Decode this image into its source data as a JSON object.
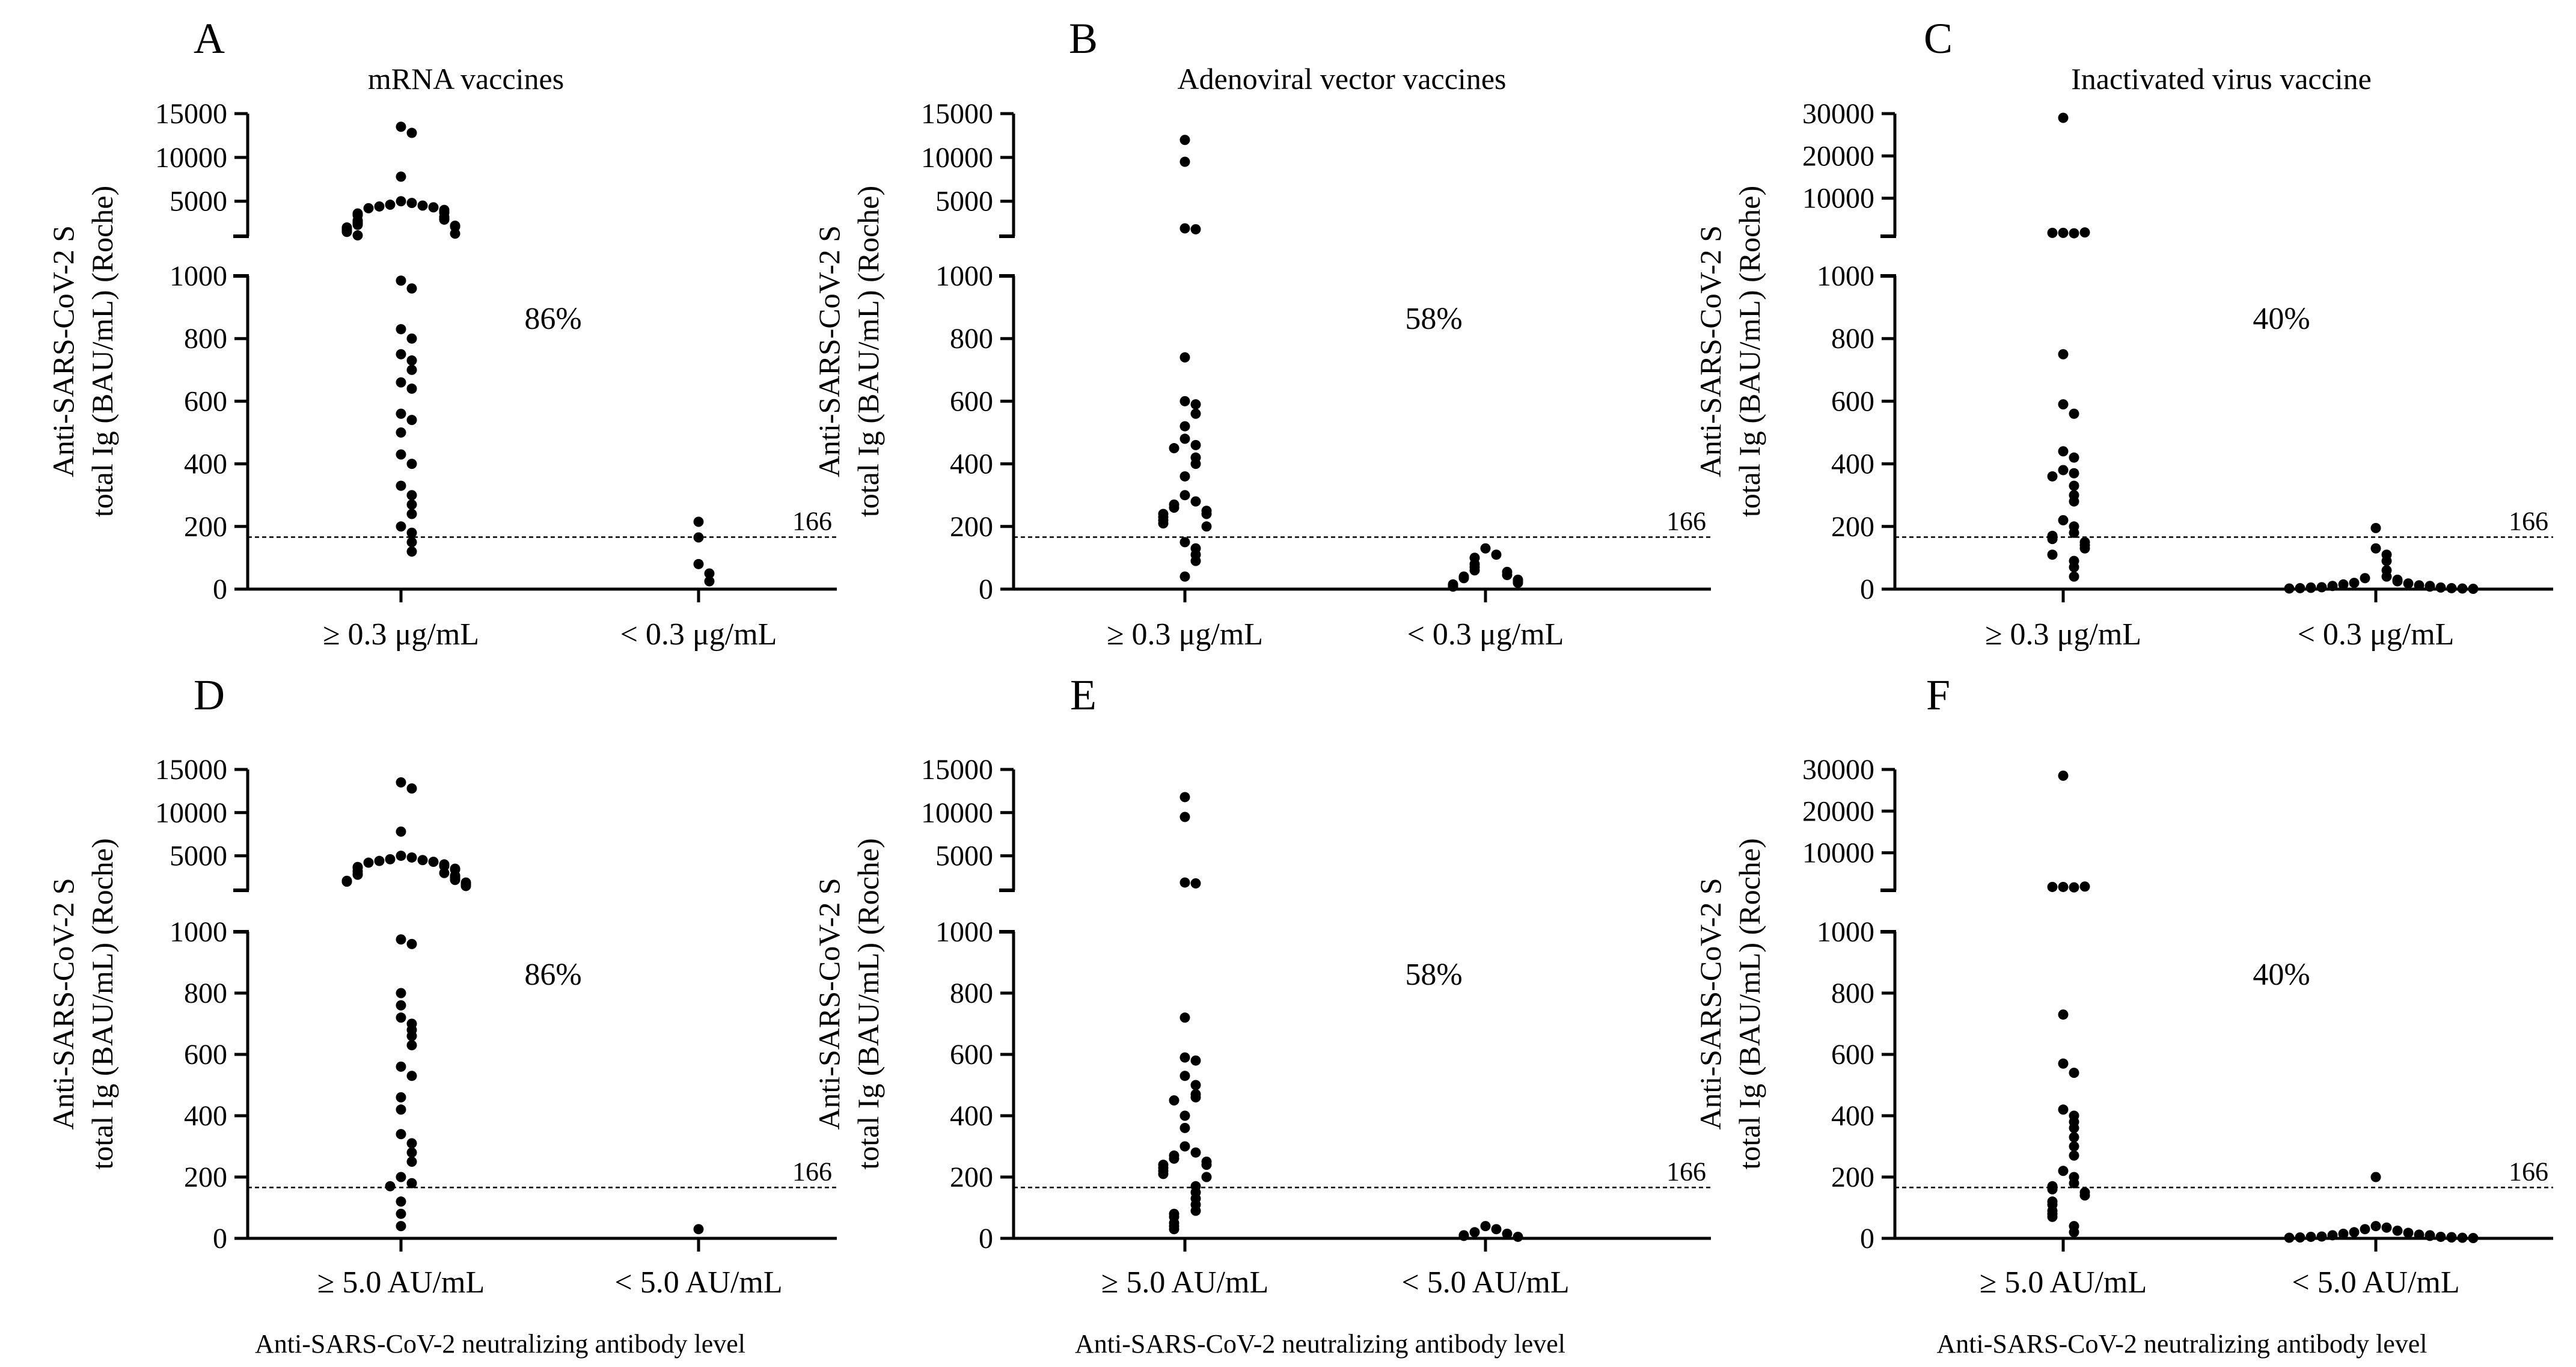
{
  "figure_caption_shared": "Anti-SARS-CoV-2 neutralizing antibody level",
  "chart_data": [
    {
      "type": "scatter",
      "panel_letter": "A",
      "title": "mRNA vaccines",
      "ylabel_line1": "Anti-SARS-CoV-2 S",
      "ylabel_line2": "total Ig (BAU/mL) (Roche)",
      "xlabel": "",
      "percent_label": "86%",
      "cutoff": 166,
      "cutoff_label": "166",
      "lower_ylim": [
        0,
        1000
      ],
      "lower_ticks": [
        "0",
        "200",
        "400",
        "600",
        "800",
        "1000"
      ],
      "upper_ylim": [
        1000,
        15000
      ],
      "upper_ticks": [
        "5000",
        "10000",
        "15000"
      ],
      "categories": [
        "≥ 0.3 μg/mL",
        "< 0.3 μg/mL"
      ],
      "series": [
        {
          "name": "≥ 0.3 μg/mL",
          "values": [
            13500,
            12800,
            7800,
            5000,
            4800,
            4600,
            4500,
            4400,
            4300,
            4200,
            4000,
            3800,
            3700,
            3600,
            3500,
            3400,
            3200,
            3000,
            2900,
            2800,
            2700,
            2600,
            2500,
            2400,
            2300,
            2200,
            2100,
            2000,
            1900,
            1800,
            1700,
            1600,
            1500,
            1300,
            1100,
            985,
            960,
            830,
            800,
            750,
            730,
            700,
            660,
            640,
            560,
            540,
            500,
            430,
            400,
            330,
            300,
            270,
            240,
            200,
            180,
            150,
            120
          ]
        },
        {
          "name": "< 0.3 μg/mL",
          "values": [
            215,
            165,
            80,
            50,
            25
          ]
        }
      ]
    },
    {
      "type": "scatter",
      "panel_letter": "B",
      "title": "Adenoviral vector vaccines",
      "ylabel_line1": "Anti-SARS-CoV-2 S",
      "ylabel_line2": "total Ig (BAU/mL) (Roche)",
      "xlabel": "",
      "percent_label": "58%",
      "cutoff": 166,
      "cutoff_label": "166",
      "lower_ylim": [
        0,
        1000
      ],
      "lower_ticks": [
        "0",
        "200",
        "400",
        "600",
        "800",
        "1000"
      ],
      "upper_ylim": [
        1000,
        15000
      ],
      "upper_ticks": [
        "5000",
        "10000",
        "15000"
      ],
      "categories": [
        "≥ 0.3 μg/mL",
        "< 0.3 μg/mL"
      ],
      "series": [
        {
          "name": "≥ 0.3 μg/mL",
          "values": [
            12000,
            9500,
            1900,
            1800,
            740,
            600,
            590,
            560,
            520,
            480,
            460,
            450,
            420,
            400,
            360,
            300,
            280,
            270,
            260,
            250,
            240,
            240,
            230,
            220,
            210,
            200,
            150,
            130,
            110,
            90,
            40
          ]
        },
        {
          "name": "< 0.3 μg/mL",
          "values": [
            130,
            110,
            100,
            80,
            70,
            60,
            55,
            45,
            40,
            35,
            30,
            25,
            20,
            15,
            10,
            8
          ]
        }
      ]
    },
    {
      "type": "scatter",
      "panel_letter": "C",
      "title": "Inactivated virus vaccine",
      "ylabel_line1": "Anti-SARS-CoV-2 S",
      "ylabel_line2": "total Ig (BAU/mL) (Roche)",
      "xlabel": "",
      "percent_label": "40%",
      "cutoff": 166,
      "cutoff_label": "166",
      "lower_ylim": [
        0,
        1000
      ],
      "lower_ticks": [
        "0",
        "200",
        "400",
        "600",
        "800",
        "1000"
      ],
      "upper_ylim": [
        1000,
        30000
      ],
      "upper_ticks": [
        "10000",
        "20000",
        "30000"
      ],
      "categories": [
        "≥ 0.3 μg/mL",
        "< 0.3 μg/mL"
      ],
      "series": [
        {
          "name": "≥ 0.3 μg/mL",
          "values": [
            29000,
            1800,
            1700,
            1800,
            1900,
            750,
            590,
            560,
            440,
            420,
            380,
            370,
            360,
            330,
            300,
            280,
            220,
            200,
            180,
            170,
            160,
            150,
            140,
            130,
            110,
            90,
            70,
            40
          ]
        },
        {
          "name": "< 0.3 μg/mL",
          "values": [
            195,
            130,
            110,
            90,
            60,
            40,
            35,
            30,
            25,
            20,
            18,
            15,
            12,
            10,
            10,
            8,
            6,
            5,
            5,
            4,
            3,
            3,
            2,
            2,
            1
          ]
        }
      ]
    },
    {
      "type": "scatter",
      "panel_letter": "D",
      "title": "",
      "ylabel_line1": "Anti-SARS-CoV-2 S",
      "ylabel_line2": "total Ig (BAU/mL) (Roche)",
      "xlabel": "Anti-SARS-CoV-2 neutralizing antibody level",
      "percent_label": "86%",
      "cutoff": 166,
      "cutoff_label": "166",
      "lower_ylim": [
        0,
        1000
      ],
      "lower_ticks": [
        "0",
        "200",
        "400",
        "600",
        "800",
        "1000"
      ],
      "upper_ylim": [
        1000,
        15000
      ],
      "upper_ticks": [
        "5000",
        "10000",
        "15000"
      ],
      "categories": [
        "≥ 5.0 AU/mL",
        "< 5.0 AU/mL"
      ],
      "series": [
        {
          "name": "≥ 5.0 AU/mL",
          "values": [
            13500,
            12800,
            7800,
            5000,
            4800,
            4600,
            4500,
            4400,
            4300,
            4200,
            4000,
            3800,
            3700,
            3600,
            3500,
            3400,
            3200,
            3000,
            2900,
            2800,
            2700,
            2600,
            2500,
            2400,
            2300,
            2200,
            2100,
            2000,
            1900,
            1800,
            1700,
            1600,
            1500,
            975,
            960,
            800,
            760,
            720,
            700,
            680,
            660,
            630,
            560,
            530,
            460,
            420,
            340,
            310,
            280,
            250,
            200,
            180,
            170,
            120,
            80,
            40
          ]
        },
        {
          "name": "< 5.0 AU/mL",
          "values": [
            30
          ]
        }
      ]
    },
    {
      "type": "scatter",
      "panel_letter": "E",
      "title": "",
      "ylabel_line1": "Anti-SARS-CoV-2 S",
      "ylabel_line2": "total Ig (BAU/mL) (Roche)",
      "xlabel": "Anti-SARS-CoV-2 neutralizing antibody level",
      "percent_label": "58%",
      "cutoff": 166,
      "cutoff_label": "166",
      "lower_ylim": [
        0,
        1000
      ],
      "lower_ticks": [
        "0",
        "200",
        "400",
        "600",
        "800",
        "1000"
      ],
      "upper_ylim": [
        1000,
        15000
      ],
      "upper_ticks": [
        "5000",
        "10000",
        "15000"
      ],
      "categories": [
        "≥ 5.0 AU/mL",
        "< 5.0 AU/mL"
      ],
      "series": [
        {
          "name": "≥ 5.0 AU/mL",
          "values": [
            11800,
            9500,
            1900,
            1800,
            720,
            590,
            580,
            530,
            500,
            470,
            460,
            450,
            400,
            360,
            300,
            280,
            270,
            260,
            250,
            240,
            240,
            230,
            220,
            210,
            200,
            170,
            150,
            130,
            110,
            90,
            80,
            70,
            50,
            40,
            30
          ]
        },
        {
          "name": "< 5.0 AU/mL",
          "values": [
            40,
            30,
            20,
            15,
            10,
            8,
            5
          ]
        }
      ]
    },
    {
      "type": "scatter",
      "panel_letter": "F",
      "title": "",
      "ylabel_line1": "Anti-SARS-CoV-2 S",
      "ylabel_line2": "total Ig (BAU/mL) (Roche)",
      "xlabel": "Anti-SARS-CoV-2 neutralizing antibody level",
      "percent_label": "40%",
      "cutoff": 166,
      "cutoff_label": "166",
      "lower_ylim": [
        0,
        1000
      ],
      "lower_ticks": [
        "0",
        "200",
        "400",
        "600",
        "800",
        "1000"
      ],
      "upper_ylim": [
        1000,
        30000
      ],
      "upper_ticks": [
        "10000",
        "20000",
        "30000"
      ],
      "categories": [
        "≥ 5.0 AU/mL",
        "< 5.0 AU/mL"
      ],
      "series": [
        {
          "name": "≥ 5.0 AU/mL",
          "values": [
            28500,
            1800,
            1700,
            1800,
            1900,
            730,
            570,
            540,
            420,
            400,
            380,
            360,
            330,
            300,
            270,
            220,
            200,
            180,
            170,
            160,
            150,
            140,
            120,
            110,
            90,
            80,
            70,
            40,
            20
          ]
        },
        {
          "name": "< 5.0 AU/mL",
          "values": [
            200,
            40,
            35,
            30,
            25,
            20,
            18,
            15,
            12,
            10,
            10,
            8,
            6,
            5,
            5,
            4,
            3,
            3,
            2,
            2,
            1
          ]
        }
      ]
    }
  ]
}
